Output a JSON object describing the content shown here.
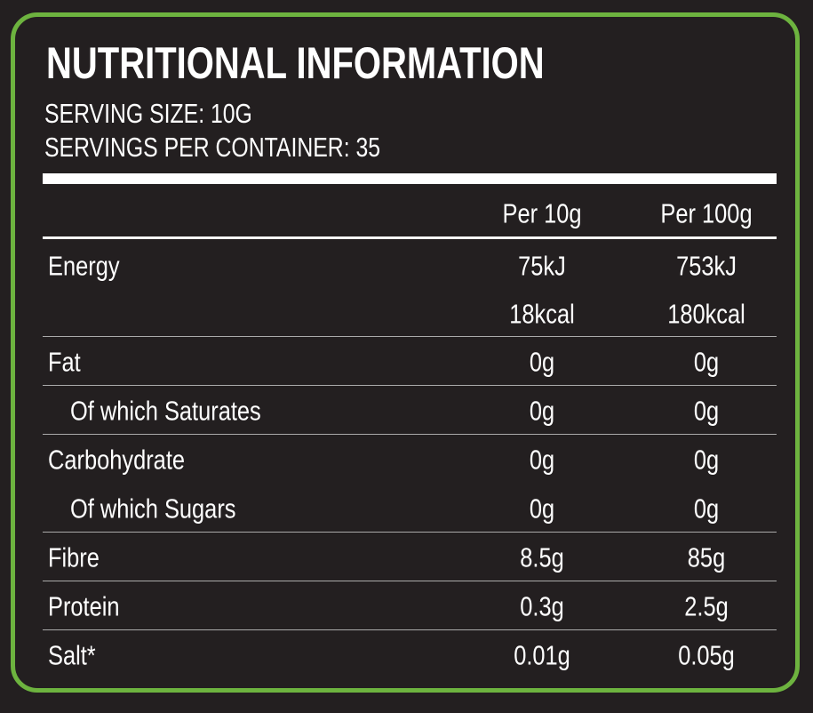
{
  "title": "NUTRITIONAL INFORMATION",
  "serving_size": "SERVING SIZE: 10G",
  "servings_per_container": "SERVINGS PER CONTAINER: 35",
  "table": {
    "headers": [
      "Per 10g",
      "Per 100g"
    ],
    "rows": [
      {
        "label": "Energy",
        "values": [
          [
            "75kJ",
            "18kcal"
          ],
          [
            "753kJ",
            "180kcal"
          ]
        ]
      },
      {
        "label": "Fat",
        "values": [
          [
            "0g"
          ],
          [
            "0g"
          ]
        ]
      },
      {
        "label": "Of which Saturates",
        "indent": true,
        "values": [
          [
            "0g"
          ],
          [
            "0g"
          ]
        ]
      },
      {
        "label": "Carbohydrate",
        "values": [
          [
            "0g"
          ],
          [
            "0g"
          ]
        ]
      },
      {
        "label": "Of which Sugars",
        "indent": true,
        "values": [
          [
            "0g"
          ],
          [
            "0g"
          ]
        ]
      },
      {
        "label": "Fibre",
        "values": [
          [
            "8.5g"
          ],
          [
            "85g"
          ]
        ]
      },
      {
        "label": "Protein",
        "values": [
          [
            "0.3g"
          ],
          [
            "2.5g"
          ]
        ]
      },
      {
        "label": "Salt*",
        "values": [
          [
            "0.01g"
          ],
          [
            "0.05g"
          ]
        ]
      }
    ]
  }
}
